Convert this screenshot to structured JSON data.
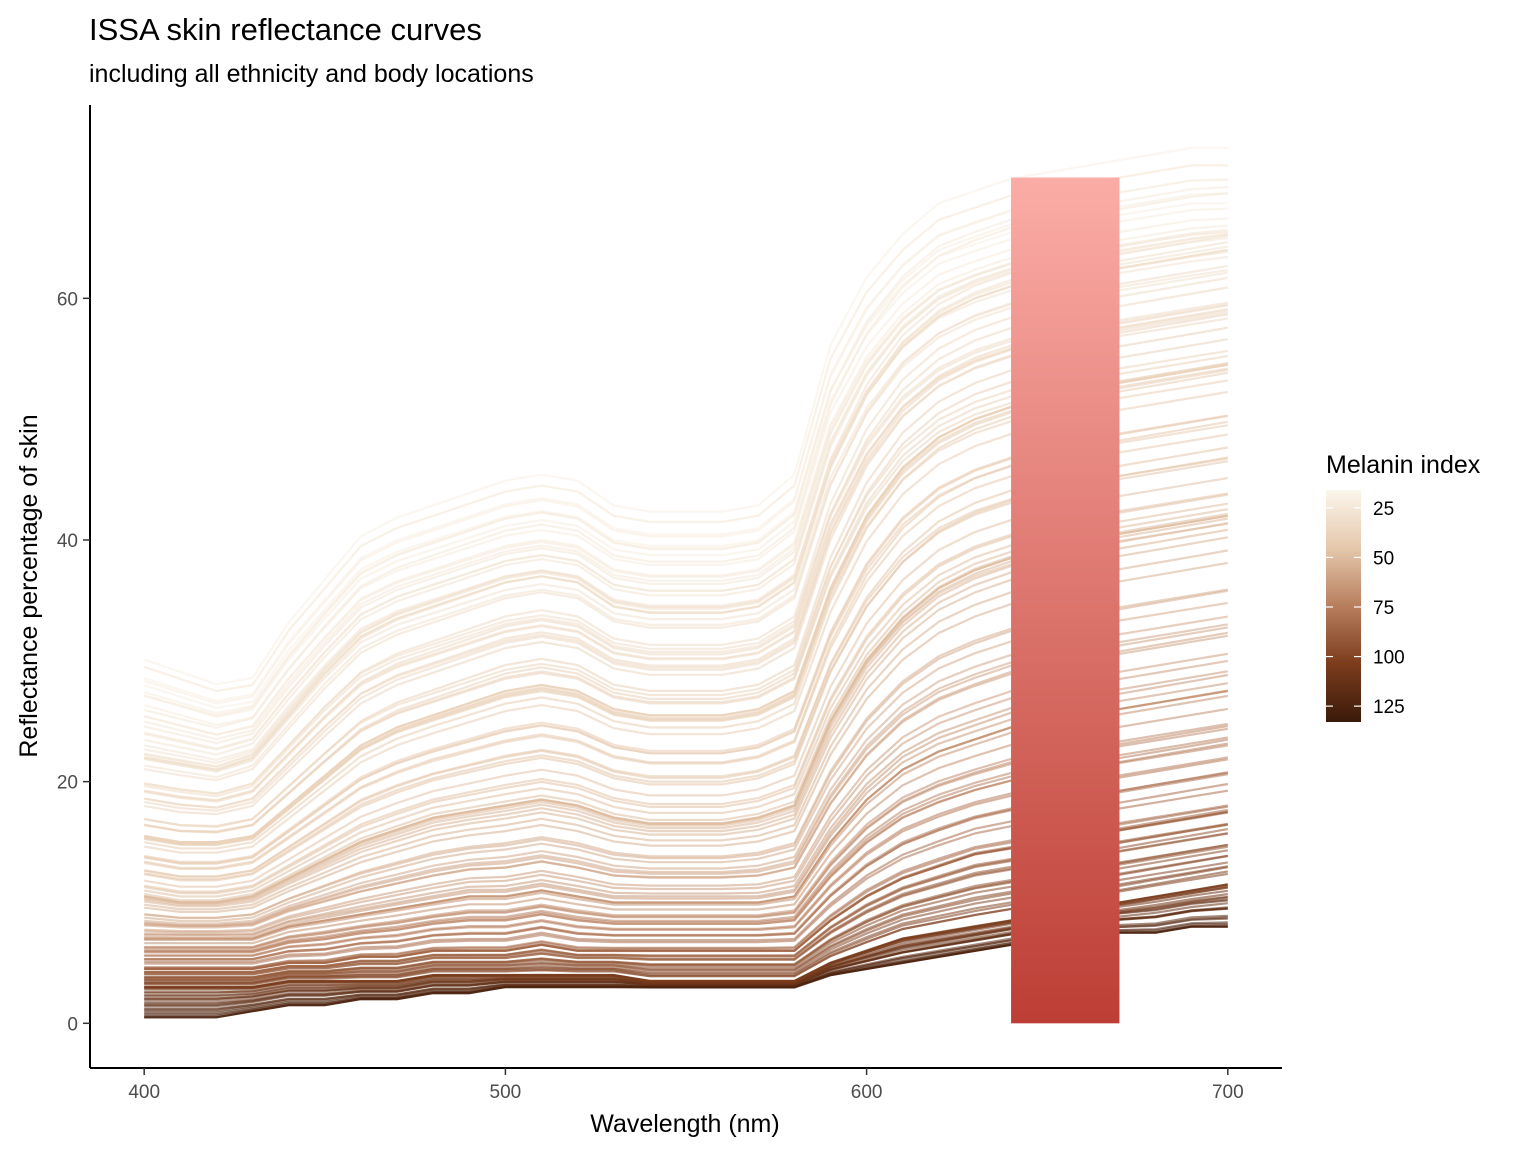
{
  "chart_data": {
    "type": "line",
    "title": "ISSA skin reflectance curves",
    "subtitle": "including all ethnicity and body locations",
    "xlabel": "Wavelength (nm)",
    "ylabel": "Reflectance percentage of skin",
    "xlim": [
      385,
      715
    ],
    "ylim": [
      -3.7,
      76
    ],
    "x_ticks": [
      400,
      500,
      600,
      700
    ],
    "y_ticks": [
      0,
      20,
      40,
      60
    ],
    "grid": false,
    "wavelengths": [
      400,
      410,
      420,
      430,
      440,
      450,
      460,
      470,
      480,
      490,
      500,
      510,
      520,
      530,
      540,
      550,
      560,
      570,
      580,
      590,
      600,
      610,
      620,
      630,
      640,
      650,
      660,
      670,
      680,
      690,
      700
    ],
    "representative_series": [
      {
        "melanin_index": 20,
        "values": [
          29.5,
          28.5,
          27.5,
          28.0,
          32.5,
          36.0,
          39.5,
          41.0,
          42.0,
          43.0,
          44.0,
          44.5,
          44.0,
          42.0,
          41.5,
          41.5,
          41.5,
          42.0,
          44.5,
          55.0,
          60.5,
          64.0,
          66.5,
          67.5,
          68.5,
          69.0,
          69.5,
          70.0,
          70.5,
          71.0,
          71.0
        ]
      },
      {
        "melanin_index": 30,
        "values": [
          22.0,
          21.5,
          21.0,
          22.0,
          25.5,
          29.0,
          32.0,
          33.5,
          34.5,
          35.5,
          36.5,
          37.0,
          36.5,
          34.5,
          34.0,
          34.0,
          34.0,
          34.5,
          36.5,
          46.0,
          52.0,
          56.0,
          58.5,
          60.0,
          61.0,
          61.5,
          62.0,
          62.5,
          63.0,
          63.5,
          64.0
        ]
      },
      {
        "melanin_index": 40,
        "values": [
          15.5,
          15.0,
          15.0,
          15.5,
          18.0,
          20.5,
          23.0,
          24.5,
          25.5,
          26.5,
          27.5,
          28.0,
          27.5,
          26.0,
          25.5,
          25.5,
          25.5,
          26.0,
          27.5,
          36.0,
          42.0,
          46.0,
          48.5,
          50.0,
          51.0,
          52.0,
          52.5,
          53.0,
          53.5,
          54.0,
          54.5
        ]
      },
      {
        "melanin_index": 50,
        "values": [
          10.5,
          10.0,
          10.0,
          10.5,
          12.0,
          13.5,
          15.0,
          16.0,
          17.0,
          17.5,
          18.0,
          18.5,
          18.0,
          17.0,
          16.5,
          16.5,
          16.5,
          17.0,
          18.0,
          25.0,
          30.0,
          33.5,
          36.0,
          37.5,
          38.5,
          39.5,
          40.0,
          40.5,
          41.0,
          41.5,
          42.0
        ]
      },
      {
        "melanin_index": 65,
        "values": [
          7.0,
          7.0,
          7.0,
          7.0,
          8.0,
          8.5,
          9.0,
          9.5,
          10.0,
          10.5,
          10.5,
          11.0,
          10.5,
          10.0,
          10.0,
          10.0,
          10.0,
          10.0,
          10.5,
          15.0,
          18.5,
          21.0,
          22.5,
          23.5,
          24.5,
          25.0,
          25.5,
          26.0,
          26.5,
          27.0,
          27.5
        ]
      },
      {
        "melanin_index": 85,
        "values": [
          4.5,
          4.5,
          4.5,
          4.5,
          5.0,
          5.0,
          5.5,
          5.5,
          6.0,
          6.0,
          6.0,
          6.5,
          6.0,
          6.0,
          6.0,
          6.0,
          6.0,
          6.0,
          6.0,
          8.5,
          10.5,
          12.0,
          13.0,
          14.0,
          14.5,
          15.0,
          15.5,
          16.0,
          16.5,
          17.0,
          17.5
        ]
      },
      {
        "melanin_index": 105,
        "values": [
          3.0,
          3.0,
          3.0,
          3.0,
          3.5,
          3.5,
          3.5,
          3.5,
          4.0,
          4.0,
          4.0,
          4.0,
          4.0,
          4.0,
          3.5,
          3.5,
          3.5,
          3.5,
          3.5,
          5.0,
          6.0,
          7.0,
          7.5,
          8.0,
          8.5,
          9.0,
          9.5,
          10.0,
          10.5,
          11.0,
          11.5
        ]
      },
      {
        "melanin_index": 125,
        "values": [
          0.5,
          0.5,
          0.5,
          1.0,
          1.5,
          1.5,
          2.0,
          2.0,
          2.5,
          2.5,
          3.0,
          3.0,
          3.0,
          3.0,
          3.0,
          3.0,
          3.0,
          3.0,
          3.0,
          4.0,
          4.5,
          5.0,
          5.5,
          6.0,
          6.5,
          7.0,
          7.0,
          7.5,
          7.5,
          8.0,
          8.0
        ]
      }
    ],
    "highlight_band": {
      "xmin": 640,
      "xmax": 670,
      "ymin": 0,
      "ymax": 70,
      "gradient_top": "#fbaaa3",
      "gradient_bottom": "#ae2418",
      "base_color": "#ffb5b5"
    },
    "legend": {
      "title": "Melanin index",
      "position": "right",
      "breaks": [
        25,
        50,
        75,
        100,
        125
      ],
      "range": [
        16,
        133
      ],
      "colors": [
        "#fbf6ec",
        "#e5c8ac",
        "#b87e5e",
        "#7b3c1c",
        "#3a1a0a"
      ]
    }
  }
}
